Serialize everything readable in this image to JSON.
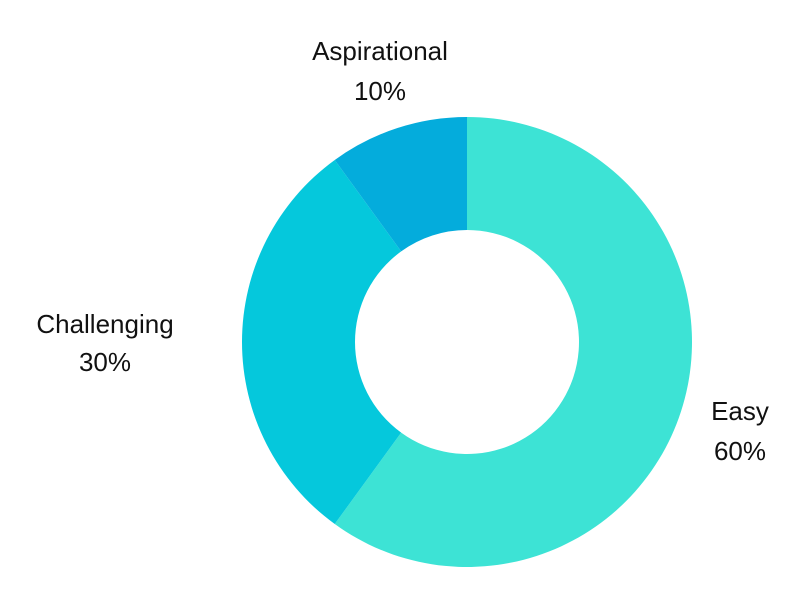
{
  "chart_data": {
    "type": "pie",
    "variant": "donut",
    "slices": [
      {
        "label": "Easy",
        "value": 60,
        "value_label": "60%",
        "color": "#3de3d5"
      },
      {
        "label": "Challenging",
        "value": 30,
        "value_label": "30%",
        "color": "#05c8dc"
      },
      {
        "label": "Aspirational",
        "value": 10,
        "value_label": "10%",
        "color": "#04acdc"
      }
    ],
    "start_angle_deg": 0,
    "direction": "clockwise",
    "legend": "none",
    "title": ""
  }
}
